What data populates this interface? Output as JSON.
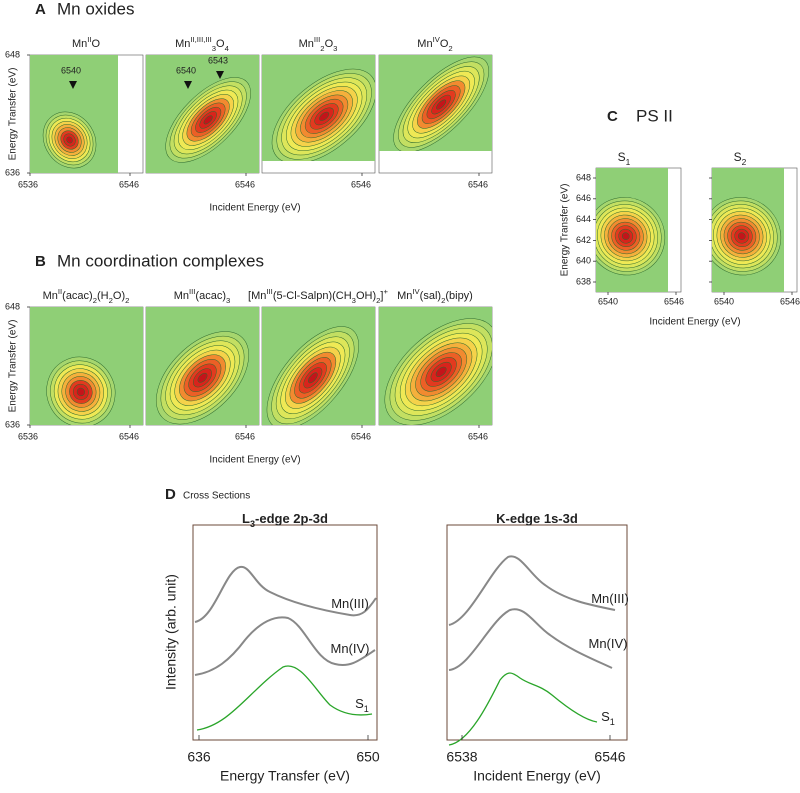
{
  "panel_a": {
    "letter": "A",
    "title": "Mn oxides",
    "y_label": "Energy Transfer (eV)",
    "x_label": "Incident Energy (eV)",
    "yticks": [
      636,
      648
    ],
    "xticks": [
      6536,
      6546
    ],
    "plots": [
      {
        "title": [
          {
            "text": "Mn"
          },
          {
            "sup": "II"
          },
          {
            "text": "O"
          }
        ],
        "annotations": [
          6540
        ]
      },
      {
        "title": [
          {
            "text": "Mn"
          },
          {
            "sup": "II,III,III"
          },
          {
            "sub": "3"
          },
          {
            "text": "O"
          },
          {
            "sub": "4"
          }
        ],
        "annotations": [
          6540,
          6543
        ]
      },
      {
        "title": [
          {
            "text": "Mn"
          },
          {
            "sup": "III"
          },
          {
            "sub": "2"
          },
          {
            "text": "O"
          },
          {
            "sub": "3"
          }
        ]
      },
      {
        "title": [
          {
            "text": "Mn"
          },
          {
            "sup": "IV"
          },
          {
            "text": "O"
          },
          {
            "sub": "2"
          }
        ]
      }
    ]
  },
  "panel_b": {
    "letter": "B",
    "title": "Mn coordination complexes",
    "y_label": "Energy Transfer (eV)",
    "x_label": "Incident Energy (eV)",
    "yticks": [
      636,
      648
    ],
    "xticks": [
      6536,
      6546
    ],
    "plots": [
      {
        "title": [
          {
            "text": "Mn"
          },
          {
            "sup": "II"
          },
          {
            "text": "(acac)"
          },
          {
            "sub": "2"
          },
          {
            "text": "(H"
          },
          {
            "sub": "2"
          },
          {
            "text": "O)"
          },
          {
            "sub": "2"
          }
        ]
      },
      {
        "title": [
          {
            "text": "Mn"
          },
          {
            "sup": "III"
          },
          {
            "text": "(acac)"
          },
          {
            "sub": "3"
          }
        ]
      },
      {
        "title": [
          {
            "text": "[Mn"
          },
          {
            "sup": "III"
          },
          {
            "text": "(5-Cl-Salpn)(CH"
          },
          {
            "sub": "3"
          },
          {
            "text": "OH)"
          },
          {
            "sub": "2"
          },
          {
            "text": "]"
          },
          {
            "sup": "+"
          }
        ]
      },
      {
        "title": [
          {
            "text": "Mn"
          },
          {
            "sup": "IV"
          },
          {
            "text": "(sal)"
          },
          {
            "sub": "2"
          },
          {
            "text": "(bipy)"
          }
        ]
      }
    ]
  },
  "panel_c": {
    "letter": "C",
    "title": "PS II",
    "y_label": "Energy Transfer (eV)",
    "x_label": "Incident Energy (eV)",
    "yticks": [
      638,
      640,
      642,
      644,
      646,
      648
    ],
    "xticks": [
      6540,
      6546
    ],
    "plots": [
      {
        "title": [
          {
            "text": "S"
          },
          {
            "sub": "1"
          }
        ]
      },
      {
        "title": [
          {
            "text": "S"
          },
          {
            "sub": "2"
          }
        ]
      }
    ]
  },
  "panel_d": {
    "letter": "D",
    "title": "Cross Sections",
    "y_label": "Intensity (arb. unit)",
    "plots": [
      {
        "title": [
          {
            "text": "L"
          },
          {
            "sub": "3"
          },
          {
            "text": "-edge 2p-3d"
          }
        ],
        "x_label": "Energy Transfer (eV)",
        "xticks": [
          636,
          650
        ],
        "curves": [
          [
            {
              "text": "Mn(III)"
            }
          ],
          [
            {
              "text": "Mn(IV)"
            }
          ],
          [
            {
              "text": "S"
            },
            {
              "sub": "1"
            }
          ]
        ]
      },
      {
        "title": [
          {
            "text": "K-edge 1s-3d"
          }
        ],
        "x_label": "Incident Energy (eV)",
        "xticks": [
          6538,
          6546
        ],
        "curves": [
          [
            {
              "text": "Mn(III)"
            }
          ],
          [
            {
              "text": "Mn(IV)"
            }
          ],
          [
            {
              "text": "S"
            },
            {
              "sub": "1"
            }
          ]
        ]
      }
    ]
  }
}
